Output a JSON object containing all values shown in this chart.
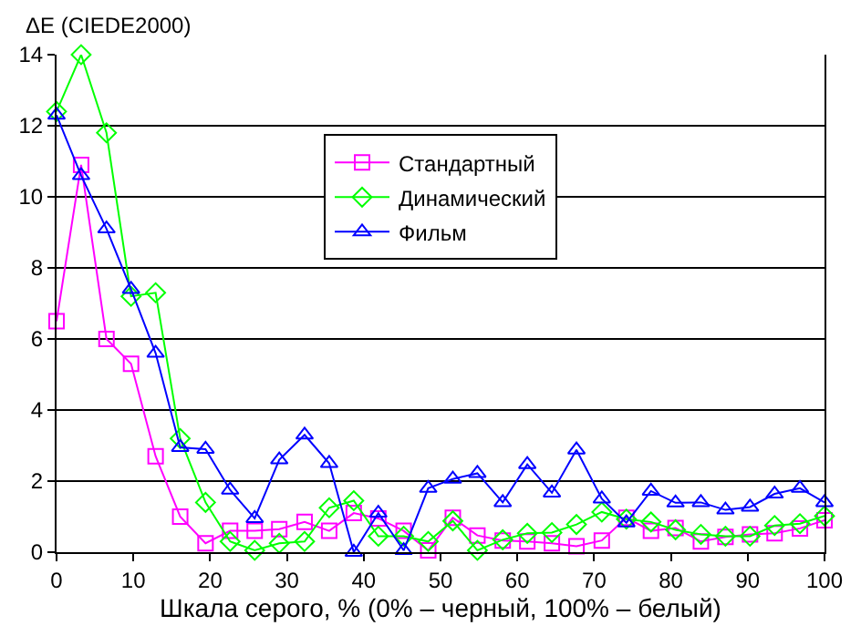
{
  "chart_data": {
    "type": "line",
    "ylabel": "ΔE (CIEDE2000)",
    "xlabel": "Шкала серого, % (0% – черный, 100% – белый)",
    "x": [
      0,
      3.2,
      6.5,
      9.7,
      12.9,
      16.1,
      19.4,
      22.6,
      25.8,
      29.0,
      32.3,
      35.5,
      38.7,
      41.9,
      45.2,
      48.4,
      51.6,
      54.8,
      58.1,
      61.3,
      64.5,
      67.7,
      71.0,
      74.2,
      77.4,
      80.6,
      83.9,
      87.1,
      90.3,
      93.5,
      96.8,
      100
    ],
    "series": [
      {
        "name": "Стандартный",
        "color": "#ff00ff",
        "marker": "square",
        "values": [
          6.5,
          10.9,
          6.0,
          5.3,
          2.7,
          1.0,
          0.25,
          0.6,
          0.6,
          0.65,
          0.85,
          0.6,
          1.1,
          0.95,
          0.6,
          0.05,
          0.97,
          0.47,
          0.33,
          0.3,
          0.25,
          0.17,
          0.33,
          0.97,
          0.6,
          0.68,
          0.3,
          0.43,
          0.5,
          0.53,
          0.67,
          0.9
        ]
      },
      {
        "name": "Динамический",
        "color": "#00ff00",
        "marker": "diamond",
        "values": [
          12.4,
          14.0,
          11.8,
          7.2,
          7.3,
          3.2,
          1.4,
          0.3,
          0.05,
          0.25,
          0.3,
          1.25,
          1.45,
          0.45,
          0.45,
          0.3,
          0.88,
          0.05,
          0.35,
          0.53,
          0.55,
          0.78,
          1.13,
          0.93,
          0.85,
          0.63,
          0.5,
          0.45,
          0.45,
          0.75,
          0.8,
          1.02
        ]
      },
      {
        "name": "Фильм",
        "color": "#0000ff",
        "marker": "triangle",
        "values": [
          12.3,
          10.6,
          9.1,
          7.4,
          5.6,
          2.95,
          2.9,
          1.75,
          0.95,
          2.6,
          3.3,
          2.5,
          0.0,
          1.1,
          0.05,
          1.8,
          2.06,
          2.22,
          1.4,
          2.47,
          1.67,
          2.88,
          1.5,
          0.83,
          1.72,
          1.39,
          1.4,
          1.19,
          1.27,
          1.64,
          1.8,
          1.4
        ]
      }
    ],
    "xlim": [
      0,
      100
    ],
    "xticks": [
      0,
      10,
      20,
      30,
      40,
      50,
      60,
      70,
      80,
      90,
      100
    ],
    "ylim": [
      0,
      14
    ],
    "yticks": [
      0,
      2,
      4,
      6,
      8,
      10,
      12,
      14
    ],
    "grid": "y",
    "legend": "top",
    "line_style": "solid"
  }
}
